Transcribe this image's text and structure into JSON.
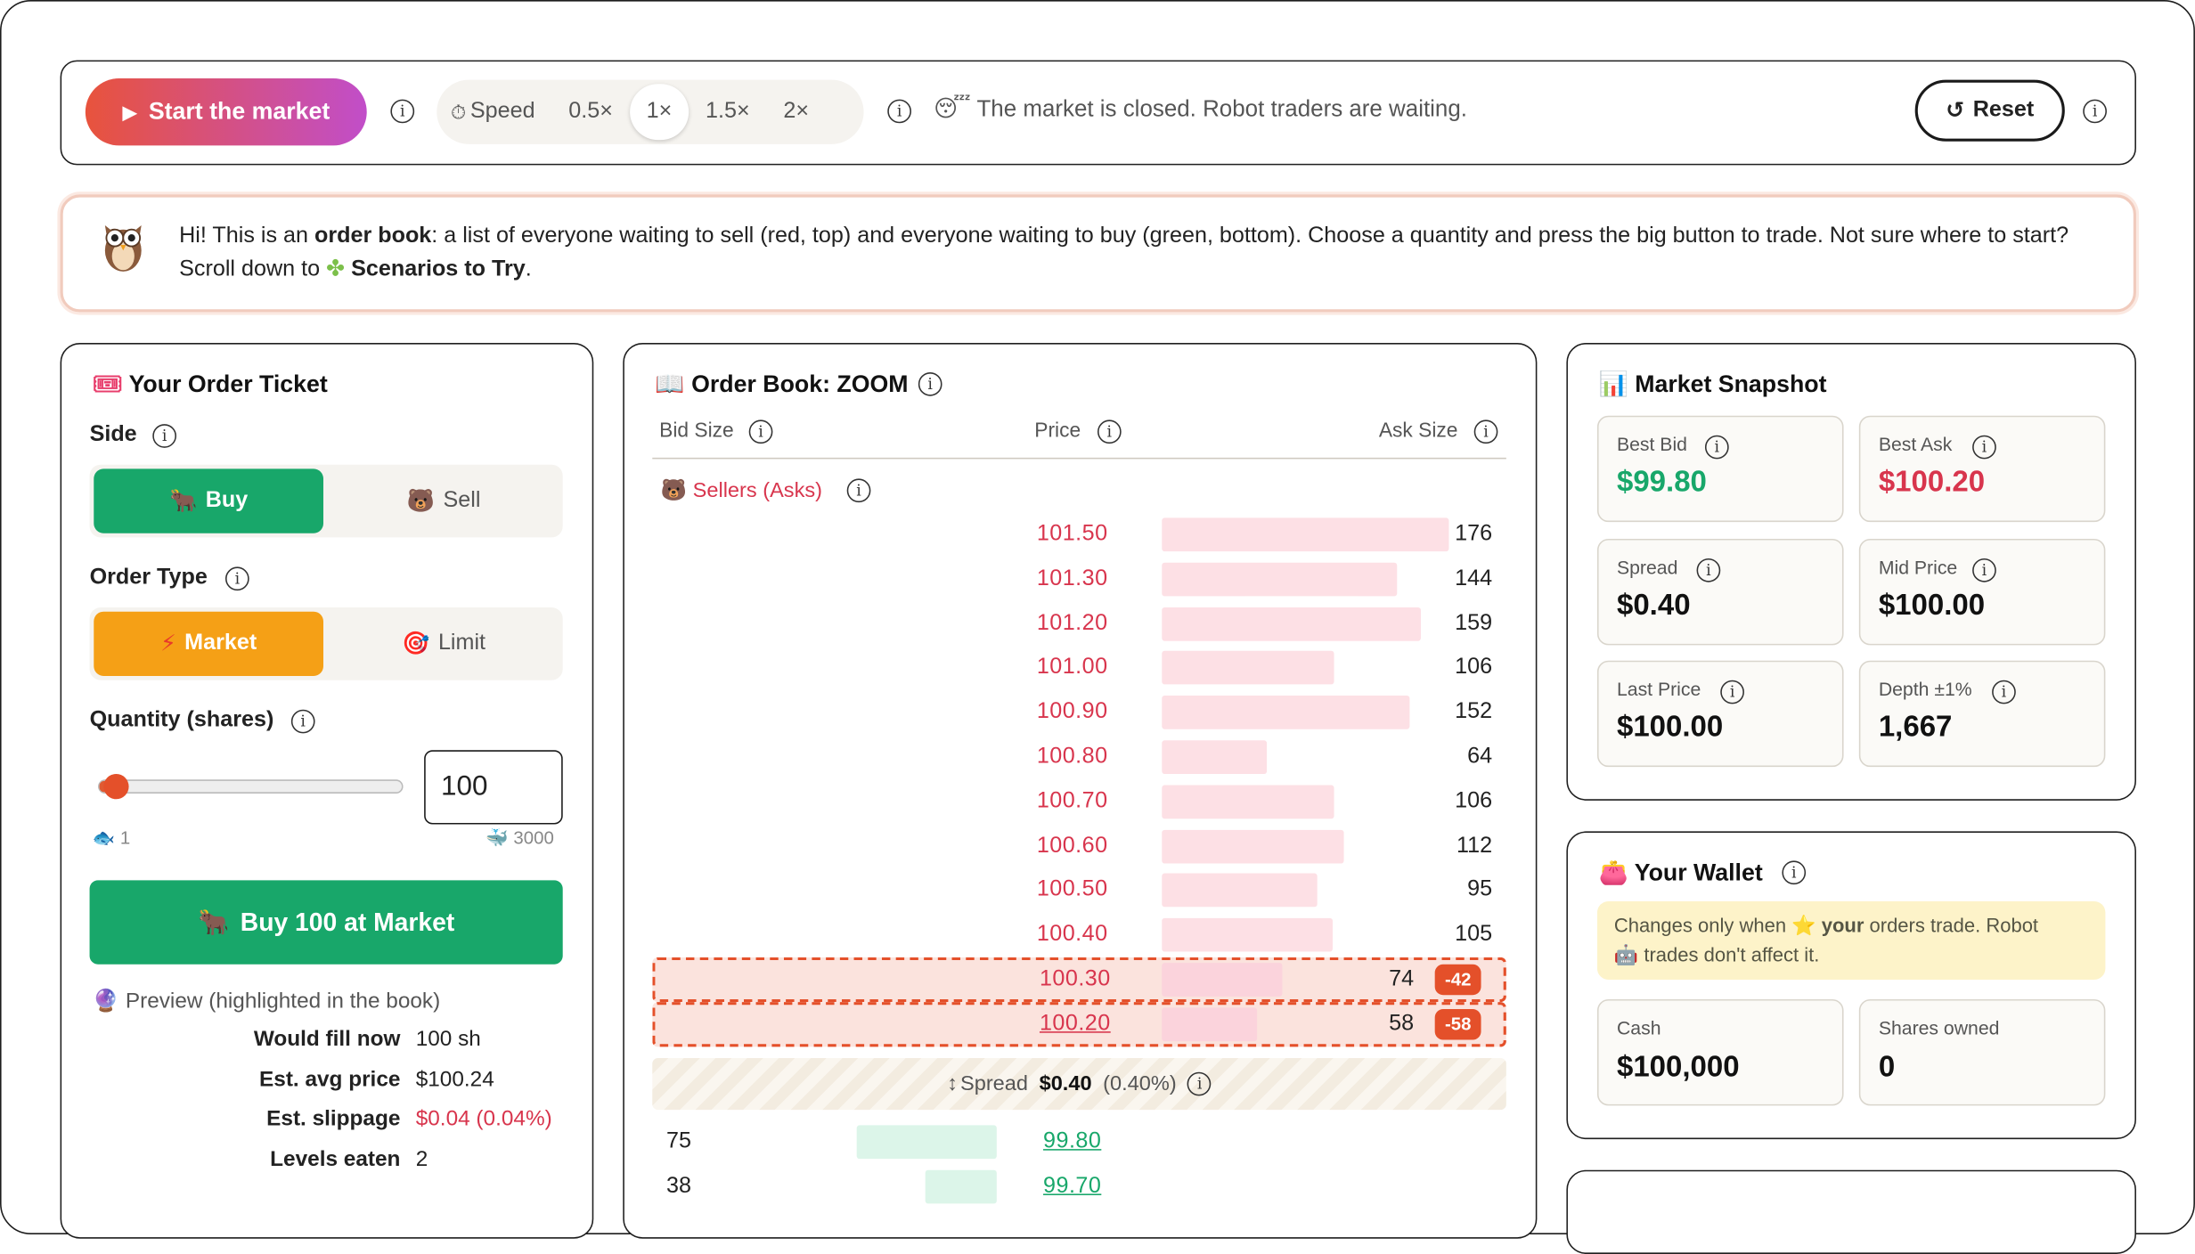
{
  "topbar": {
    "start_label": "Start the market",
    "speed_label": "Speed",
    "speeds": [
      "0.5×",
      "1×",
      "1.5×",
      "2×"
    ],
    "active_speed": "1×",
    "status_text": "The market is closed. Robot traders are waiting.",
    "reset_label": "Reset"
  },
  "intro": {
    "p1": "Hi! This is an ",
    "b1": "order book",
    "p2": ": a list of everyone waiting to sell (red, top) and everyone waiting to buy (green, bottom). Choose a quantity and press the big button to trade. Not sure where to start? Scroll down to ",
    "b2": "Scenarios to Try",
    "p3": "."
  },
  "ticket": {
    "title": "Your Order Ticket",
    "side_label": "Side",
    "buy_label": "Buy",
    "sell_label": "Sell",
    "type_label": "Order Type",
    "market_label": "Market",
    "limit_label": "Limit",
    "qty_label": "Quantity (shares)",
    "qty_value": "100",
    "qty_min": "1",
    "qty_max": "3000",
    "qty_fraction": 0.033,
    "submit_label": "Buy 100 at Market",
    "preview_title": "Preview (highlighted in the book)",
    "preview": [
      {
        "k": "Would fill now",
        "v": "100 sh",
        "color": "#222222"
      },
      {
        "k": "Est. avg price",
        "v": "$100.24",
        "color": "#222222"
      },
      {
        "k": "Est. slippage",
        "v": "$0.04 (0.04%)",
        "color": "#d8354d"
      },
      {
        "k": "Levels eaten",
        "v": "2",
        "color": "#222222"
      }
    ]
  },
  "book": {
    "title": "Order Book: ZOOM",
    "col_bid": "Bid Size",
    "col_price": "Price",
    "col_ask": "Ask Size",
    "sellers_label": "Sellers (Asks)",
    "asks": [
      {
        "price": "101.50",
        "size": 176
      },
      {
        "price": "101.30",
        "size": 144
      },
      {
        "price": "101.20",
        "size": 159
      },
      {
        "price": "101.00",
        "size": 106
      },
      {
        "price": "100.90",
        "size": 152
      },
      {
        "price": "100.80",
        "size": 64
      },
      {
        "price": "100.70",
        "size": 106
      },
      {
        "price": "100.60",
        "size": 112
      },
      {
        "price": "100.50",
        "size": 95
      },
      {
        "price": "100.40",
        "size": 105
      },
      {
        "price": "100.30",
        "size": 74,
        "delta": "-42"
      },
      {
        "price": "100.20",
        "size": 58,
        "delta": "-58"
      }
    ],
    "spread_label": "Spread",
    "spread_value": "$0.40",
    "spread_pct": "(0.40%)",
    "bids": [
      {
        "price": "99.80",
        "size": 75
      },
      {
        "price": "99.70",
        "size": 38
      }
    ]
  },
  "snapshot": {
    "title": "Market Snapshot",
    "tiles": [
      {
        "label": "Best Bid",
        "value": "$99.80",
        "tone": "green"
      },
      {
        "label": "Best Ask",
        "value": "$100.20",
        "tone": "red"
      },
      {
        "label": "Spread",
        "value": "$0.40",
        "tone": ""
      },
      {
        "label": "Mid Price",
        "value": "$100.00",
        "tone": ""
      },
      {
        "label": "Last Price",
        "value": "$100.00",
        "tone": ""
      },
      {
        "label": "Depth ±1%",
        "value": "1,667",
        "tone": ""
      }
    ]
  },
  "wallet": {
    "title": "Your Wallet",
    "note_a": "Changes only when ",
    "note_b": "your",
    "note_c": " orders trade. Robot ",
    "note_d": " trades don't affect it.",
    "cash_label": "Cash",
    "cash_value": "$100,000",
    "shares_label": "Shares owned",
    "shares_value": "0"
  }
}
